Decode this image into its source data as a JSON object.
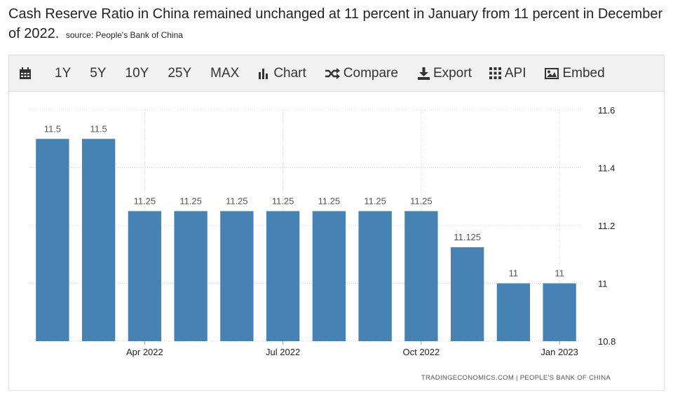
{
  "headline": {
    "text": "Cash Reserve Ratio in China remained unchanged at 11 percent in January from 11 percent in December of 2022.",
    "source": "source: People's Bank of China"
  },
  "toolbar": {
    "range_1y": "1Y",
    "range_5y": "5Y",
    "range_10y": "10Y",
    "range_25y": "25Y",
    "range_max": "MAX",
    "chart": "Chart",
    "compare": "Compare",
    "export": "Export",
    "api": "API",
    "embed": "Embed"
  },
  "icons": {
    "calendar": "calendar-icon",
    "chart": "bar-chart-icon",
    "compare": "shuffle-icon",
    "export": "download-icon",
    "api": "grid-icon",
    "embed": "image-icon"
  },
  "chart_data": {
    "type": "bar",
    "title": "",
    "xlabel": "",
    "ylabel": "",
    "ylim": [
      10.8,
      11.6
    ],
    "yticks": [
      10.8,
      11,
      11.2,
      11.4,
      11.6
    ],
    "ytick_labels": [
      "10.8",
      "11",
      "11.2",
      "11.4",
      "11.6"
    ],
    "y_axis_side": "right",
    "grid": true,
    "categories": [
      "Feb 2022",
      "Mar 2022",
      "Apr 2022",
      "May 2022",
      "Jun 2022",
      "Jul 2022",
      "Aug 2022",
      "Sep 2022",
      "Oct 2022",
      "Nov 2022",
      "Dec 2022",
      "Jan 2023"
    ],
    "values": [
      11.5,
      11.5,
      11.25,
      11.25,
      11.25,
      11.25,
      11.25,
      11.25,
      11.25,
      11.125,
      11,
      11
    ],
    "value_labels": [
      "11.5",
      "11.5",
      "11.25",
      "11.25",
      "11.25",
      "11.25",
      "11.25",
      "11.25",
      "11.25",
      "11.125",
      "11",
      "11"
    ],
    "xticks": [
      {
        "at": "Apr 2022",
        "label": "Apr 2022"
      },
      {
        "at": "Jul 2022",
        "label": "Jul 2022"
      },
      {
        "at": "Oct 2022",
        "label": "Oct 2022"
      },
      {
        "at": "Jan 2023",
        "label": "Jan 2023"
      }
    ],
    "bar_color": "#4682b4",
    "credits": "TRADINGECONOMICS.COM | PEOPLE'S BANK OF CHINA"
  }
}
